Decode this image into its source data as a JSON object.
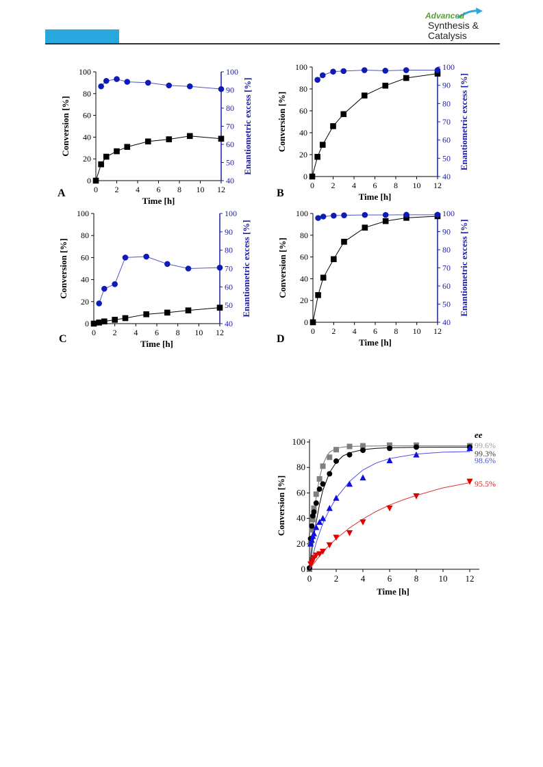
{
  "header": {
    "logo_word1": "Advanced",
    "logo_word2": "Synthesis &",
    "logo_word3": "Catalysis"
  },
  "chart_data": [
    {
      "type": "line",
      "panel_label": "A",
      "xlabel": "Time [h]",
      "ylabel": "Conversion [%]",
      "y2label": "Enantiometric excess [%]",
      "xlim": [
        0,
        12
      ],
      "ylim": [
        0,
        100
      ],
      "y2lim": [
        40,
        100
      ],
      "xticks": [
        0,
        2,
        4,
        6,
        8,
        10,
        12
      ],
      "yticks": [
        0,
        20,
        40,
        60,
        80,
        100
      ],
      "y2ticks": [
        40,
        50,
        60,
        70,
        80,
        90,
        100
      ],
      "series": [
        {
          "axis": "left",
          "marker": "square",
          "color": "#000000",
          "x": [
            0,
            0.5,
            1,
            2,
            3,
            5,
            7,
            9,
            12
          ],
          "y": [
            0,
            15,
            22,
            27,
            31,
            36,
            38,
            41,
            38.5
          ]
        },
        {
          "axis": "right",
          "marker": "circle",
          "color": "#0f1bb5",
          "x": [
            0.5,
            1,
            2,
            3,
            5,
            7,
            9,
            12
          ],
          "y": [
            92,
            95,
            96,
            94.5,
            94,
            92.5,
            92,
            90.5
          ]
        }
      ]
    },
    {
      "type": "line",
      "panel_label": "B",
      "xlabel": "Time [h]",
      "ylabel": "Conversion [%]",
      "y2label": "Enantiometric excess [%]",
      "xlim": [
        0,
        12
      ],
      "ylim": [
        0,
        100
      ],
      "y2lim": [
        40,
        100
      ],
      "xticks": [
        0,
        2,
        4,
        6,
        8,
        10,
        12
      ],
      "yticks": [
        0,
        20,
        40,
        60,
        80,
        100
      ],
      "y2ticks": [
        40,
        50,
        60,
        70,
        80,
        90,
        100
      ],
      "series": [
        {
          "axis": "left",
          "marker": "square",
          "color": "#000000",
          "x": [
            0,
            0.5,
            1,
            2,
            3,
            5,
            7,
            9,
            12
          ],
          "y": [
            0,
            18,
            29,
            46,
            57,
            74,
            83,
            90,
            94
          ]
        },
        {
          "axis": "right",
          "marker": "circle",
          "color": "#0f1bb5",
          "x": [
            0.5,
            1,
            2,
            3,
            5,
            7,
            9,
            12
          ],
          "y": [
            93,
            95.5,
            97.5,
            97.8,
            98.3,
            98,
            98.3,
            98.3
          ]
        }
      ]
    },
    {
      "type": "line",
      "panel_label": "C",
      "xlabel": "Time [h]",
      "ylabel": "Conversion [%]",
      "y2label": "Enantiometric excess [%]",
      "xlim": [
        0,
        12
      ],
      "ylim": [
        0,
        100
      ],
      "y2lim": [
        40,
        100
      ],
      "xticks": [
        0,
        2,
        4,
        6,
        8,
        10,
        12
      ],
      "yticks": [
        0,
        20,
        40,
        60,
        80,
        100
      ],
      "y2ticks": [
        40,
        50,
        60,
        70,
        80,
        90,
        100
      ],
      "series": [
        {
          "axis": "left",
          "marker": "square",
          "color": "#000000",
          "x": [
            0,
            0.5,
            1,
            2,
            3,
            5,
            7,
            9,
            12
          ],
          "y": [
            0,
            1,
            2,
            3.5,
            5,
            8.5,
            10,
            12,
            14.5
          ]
        },
        {
          "axis": "right",
          "marker": "circle",
          "color": "#0f1bb5",
          "x": [
            0.5,
            1,
            2,
            3,
            5,
            7,
            9,
            12
          ],
          "y": [
            51,
            59,
            61.5,
            76,
            76.5,
            72.5,
            70,
            70.5
          ]
        }
      ]
    },
    {
      "type": "line",
      "panel_label": "D",
      "xlabel": "Time [h]",
      "ylabel": "Conversion [%]",
      "y2label": "Enantiometric excess [%]",
      "xlim": [
        0,
        12
      ],
      "ylim": [
        0,
        100
      ],
      "y2lim": [
        40,
        100
      ],
      "xticks": [
        0,
        2,
        4,
        6,
        8,
        10,
        12
      ],
      "yticks": [
        0,
        20,
        40,
        60,
        80,
        100
      ],
      "y2ticks": [
        40,
        50,
        60,
        70,
        80,
        90,
        100
      ],
      "series": [
        {
          "axis": "left",
          "marker": "square",
          "color": "#000000",
          "x": [
            0,
            0.5,
            1,
            2,
            3,
            5,
            7,
            9,
            12
          ],
          "y": [
            0,
            25,
            41,
            58,
            74,
            87,
            93,
            96,
            97.5
          ]
        },
        {
          "axis": "right",
          "marker": "circle",
          "color": "#0f1bb5",
          "x": [
            0.5,
            1,
            2,
            3,
            5,
            7,
            9,
            12
          ],
          "y": [
            97.5,
            98.3,
            98.8,
            99,
            99.2,
            99.2,
            99.3,
            99.3
          ]
        }
      ]
    },
    {
      "type": "scatter",
      "xlabel": "Time [h]",
      "ylabel": "Conversion [%]",
      "xlim": [
        0,
        12
      ],
      "ylim": [
        0,
        100
      ],
      "xticks": [
        0,
        2,
        4,
        6,
        8,
        10,
        12
      ],
      "yticks": [
        0,
        20,
        40,
        60,
        80,
        100
      ],
      "annotation_header": "ee",
      "series": [
        {
          "marker": "square",
          "color": "#808080",
          "ee_label": "99.6%",
          "x": [
            0,
            0.08,
            0.17,
            0.25,
            0.33,
            0.5,
            0.75,
            1,
            1.5,
            2,
            3,
            4,
            6,
            8,
            12
          ],
          "y": [
            0,
            20,
            31,
            39,
            48,
            59,
            71,
            81,
            88,
            94,
            96.5,
            97,
            97.5,
            97.5,
            97
          ],
          "fit": {
            "x": [
              0,
              0.25,
              0.5,
              0.75,
              1,
              1.25,
              1.5,
              2,
              2.5,
              3,
              4,
              6,
              8,
              12
            ],
            "y": [
              0,
              34,
              57,
              72,
              82,
              88,
              92,
              95,
              96,
              96.5,
              96.8,
              97,
              97,
              97
            ]
          }
        },
        {
          "marker": "circle",
          "color": "#000000",
          "ee_label": "99.3%",
          "x": [
            0,
            0.08,
            0.17,
            0.25,
            0.33,
            0.5,
            0.75,
            1,
            1.5,
            2,
            3,
            4,
            6,
            8,
            12
          ],
          "y": [
            1,
            24,
            34,
            42,
            45,
            52,
            63,
            67,
            75,
            85,
            90,
            93.5,
            95,
            96,
            96
          ],
          "fit": {
            "x": [
              0,
              0.25,
              0.5,
              0.75,
              1,
              1.5,
              2,
              2.5,
              3,
              4,
              5,
              6,
              8,
              12
            ],
            "y": [
              0,
              20,
              37,
              51,
              62,
              76,
              84,
              89,
              91.5,
              94,
              95,
              95.5,
              95.8,
              96
            ]
          }
        },
        {
          "marker": "triangle-up",
          "color": "#1010e0",
          "ee_label": "98.6%",
          "x": [
            0.08,
            0.17,
            0.25,
            0.33,
            0.5,
            0.75,
            1,
            1.5,
            2,
            3,
            4,
            6,
            8,
            12
          ],
          "y": [
            20,
            23,
            26,
            28,
            33,
            37,
            40,
            48,
            56,
            67,
            72,
            85.5,
            90,
            95
          ],
          "fit": {
            "x": [
              0,
              0.5,
              1,
              1.5,
              2,
              3,
              4,
              5,
              6,
              8,
              10,
              12
            ],
            "y": [
              0,
              21,
              36,
              47,
              56,
              69,
              78,
              83.5,
              87,
              90.5,
              92,
              92.5
            ]
          }
        },
        {
          "marker": "triangle-down",
          "color": "#e00000",
          "ee_label": "95.5%",
          "x": [
            0.08,
            0.17,
            0.25,
            0.33,
            0.5,
            0.75,
            1,
            1.5,
            2,
            3,
            4,
            6,
            8,
            12
          ],
          "y": [
            4,
            5,
            7,
            9,
            11,
            12,
            14,
            19,
            25,
            28.5,
            37,
            48,
            57.5,
            69
          ],
          "fit": {
            "x": [
              0,
              0.5,
              1,
              1.5,
              2,
              3,
              4,
              5,
              6,
              7,
              8,
              10,
              12
            ],
            "y": [
              0,
              7,
              13.5,
              19,
              24,
              32.5,
              39.5,
              45.5,
              50.5,
              54.5,
              58,
              64,
              68
            ]
          }
        }
      ]
    }
  ]
}
